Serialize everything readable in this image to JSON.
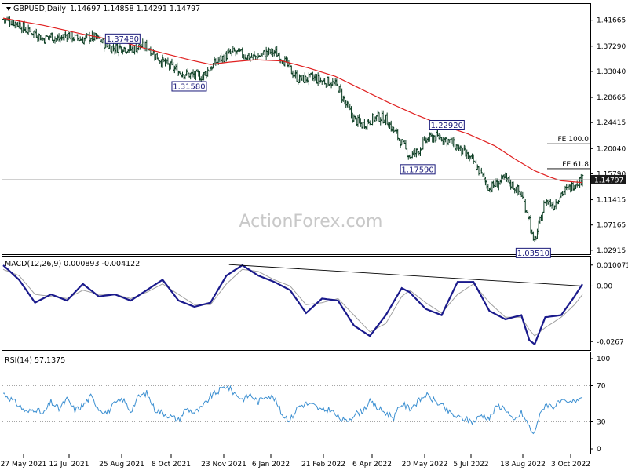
{
  "header": {
    "symbol": "GBPUSD,Daily",
    "ohlc": "1.14697 1.14858 1.14291 1.14797",
    "macd_label": "MACD(12,26,9) 0.000893 -0.004122",
    "rsi_label": "RSI(14) 57.1375"
  },
  "watermark": "ActionForex.com",
  "colors": {
    "candle": "#0b3d22",
    "ma": "#e02020",
    "macd_line": "#1a1a8c",
    "macd_signal": "#a0a0a0",
    "rsi": "#3b8fd1",
    "annotation": "#1a1a7a",
    "current_price_bg": "#1a1a1a",
    "grid_dots": "#888888"
  },
  "chart_data": [
    {
      "type": "candlestick",
      "name": "price",
      "ylim": [
        1.025,
        1.44
      ],
      "y_ticks": [
        "1.41665",
        "1.37290",
        "1.33040",
        "1.28665",
        "1.24415",
        "1.20040",
        "1.15790",
        "1.11415",
        "1.07165",
        "1.02915"
      ],
      "current_price": "1.14797",
      "x_ticks": [
        "27 May 2021",
        "12 Jul 2021",
        "25 Aug 2021",
        "8 Oct 2021",
        "23 Nov 2021",
        "6 Jan 2022",
        "21 Feb 2022",
        "6 Apr 2022",
        "20 May 2022",
        "5 Jul 2022",
        "18 Aug 2022",
        "3 Oct 2022"
      ],
      "close_path": [
        [
          0,
          1.418
        ],
        [
          6,
          1.415
        ],
        [
          12,
          1.41
        ],
        [
          18,
          1.398
        ],
        [
          24,
          1.396
        ],
        [
          30,
          1.385
        ],
        [
          36,
          1.39
        ],
        [
          42,
          1.384
        ],
        [
          48,
          1.393
        ],
        [
          54,
          1.386
        ],
        [
          60,
          1.384
        ],
        [
          66,
          1.389
        ],
        [
          72,
          1.384
        ],
        [
          78,
          1.373
        ],
        [
          84,
          1.37
        ],
        [
          90,
          1.371
        ],
        [
          96,
          1.367
        ],
        [
          102,
          1.372
        ],
        [
          108,
          1.373
        ],
        [
          114,
          1.359
        ],
        [
          120,
          1.346
        ],
        [
          126,
          1.338
        ],
        [
          132,
          1.33
        ],
        [
          138,
          1.326
        ],
        [
          144,
          1.323
        ],
        [
          150,
          1.322
        ],
        [
          156,
          1.337
        ],
        [
          162,
          1.349
        ],
        [
          168,
          1.357
        ],
        [
          174,
          1.363
        ],
        [
          180,
          1.359
        ],
        [
          186,
          1.354
        ],
        [
          192,
          1.356
        ],
        [
          198,
          1.362
        ],
        [
          204,
          1.363
        ],
        [
          210,
          1.353
        ],
        [
          216,
          1.333
        ],
        [
          222,
          1.317
        ],
        [
          228,
          1.318
        ],
        [
          234,
          1.319
        ],
        [
          240,
          1.314
        ],
        [
          246,
          1.313
        ],
        [
          252,
          1.304
        ],
        [
          258,
          1.274
        ],
        [
          264,
          1.25
        ],
        [
          270,
          1.24
        ],
        [
          276,
          1.248
        ],
        [
          282,
          1.254
        ],
        [
          288,
          1.25
        ],
        [
          294,
          1.23
        ],
        [
          300,
          1.21
        ],
        [
          306,
          1.187
        ],
        [
          312,
          1.196
        ],
        [
          318,
          1.214
        ],
        [
          324,
          1.22
        ],
        [
          330,
          1.219
        ],
        [
          336,
          1.213
        ],
        [
          342,
          1.202
        ],
        [
          348,
          1.19
        ],
        [
          354,
          1.177
        ],
        [
          360,
          1.156
        ],
        [
          366,
          1.133
        ],
        [
          372,
          1.142
        ],
        [
          378,
          1.15
        ],
        [
          384,
          1.137
        ],
        [
          390,
          1.123
        ],
        [
          396,
          1.082
        ],
        [
          399,
          1.04
        ],
        [
          402,
          1.06
        ],
        [
          408,
          1.113
        ],
        [
          414,
          1.105
        ],
        [
          420,
          1.125
        ],
        [
          426,
          1.133
        ],
        [
          432,
          1.145
        ],
        [
          436,
          1.148
        ]
      ],
      "moving_average": [
        [
          0,
          1.42
        ],
        [
          30,
          1.408
        ],
        [
          60,
          1.393
        ],
        [
          90,
          1.38
        ],
        [
          110,
          1.367
        ],
        [
          140,
          1.35
        ],
        [
          156,
          1.342
        ],
        [
          170,
          1.346
        ],
        [
          190,
          1.35
        ],
        [
          210,
          1.348
        ],
        [
          230,
          1.336
        ],
        [
          250,
          1.322
        ],
        [
          270,
          1.3
        ],
        [
          290,
          1.278
        ],
        [
          310,
          1.258
        ],
        [
          330,
          1.24
        ],
        [
          350,
          1.225
        ],
        [
          370,
          1.205
        ],
        [
          385,
          1.183
        ],
        [
          400,
          1.163
        ],
        [
          412,
          1.152
        ],
        [
          420,
          1.146
        ],
        [
          436,
          1.143
        ]
      ],
      "annotations": [
        {
          "label": "1.37480",
          "x": 90,
          "y": 1.3748,
          "pos": "above"
        },
        {
          "label": "1.31580",
          "x": 140,
          "y": 1.3158,
          "pos": "below"
        },
        {
          "label": "1.22920",
          "x": 334,
          "y": 1.2292,
          "pos": "above"
        },
        {
          "label": "1.17590",
          "x": 312,
          "y": 1.1759,
          "pos": "below"
        },
        {
          "label": "1.03510",
          "x": 399,
          "y": 1.0351,
          "pos": "below"
        },
        {
          "label": "FE 100.0",
          "y": 1.2085
        },
        {
          "label": "FE 61.8",
          "y": 1.1665
        }
      ]
    },
    {
      "type": "line",
      "name": "MACD(12,26,9)",
      "ylim": [
        -0.03,
        0.013
      ],
      "y_ticks": [
        "0.010071",
        "0.00",
        "-0.0267"
      ],
      "series": [
        {
          "role": "macd",
          "points": [
            [
              0,
              0.01
            ],
            [
              12,
              0.003
            ],
            [
              24,
              -0.008
            ],
            [
              36,
              -0.004
            ],
            [
              48,
              -0.007
            ],
            [
              60,
              0.001
            ],
            [
              72,
              -0.005
            ],
            [
              84,
              -0.004
            ],
            [
              96,
              -0.007
            ],
            [
              108,
              -0.002
            ],
            [
              120,
              0.003
            ],
            [
              132,
              -0.007
            ],
            [
              144,
              -0.01
            ],
            [
              156,
              -0.008
            ],
            [
              168,
              0.005
            ],
            [
              180,
              0.01
            ],
            [
              192,
              0.005
            ],
            [
              204,
              0.002
            ],
            [
              216,
              -0.002
            ],
            [
              228,
              -0.013
            ],
            [
              240,
              -0.006
            ],
            [
              252,
              -0.007
            ],
            [
              264,
              -0.019
            ],
            [
              276,
              -0.024
            ],
            [
              288,
              -0.014
            ],
            [
              300,
              -0.001
            ],
            [
              306,
              -0.003
            ],
            [
              318,
              -0.011
            ],
            [
              330,
              -0.014
            ],
            [
              342,
              0.002
            ],
            [
              354,
              0.002
            ],
            [
              366,
              -0.012
            ],
            [
              378,
              -0.016
            ],
            [
              390,
              -0.014
            ],
            [
              396,
              -0.026
            ],
            [
              400,
              -0.028
            ],
            [
              408,
              -0.015
            ],
            [
              420,
              -0.014
            ],
            [
              430,
              -0.005
            ],
            [
              436,
              0.0009
            ]
          ]
        },
        {
          "role": "signal",
          "points": [
            [
              0,
              0.008
            ],
            [
              12,
              0.005
            ],
            [
              24,
              -0.004
            ],
            [
              36,
              -0.005
            ],
            [
              48,
              -0.006
            ],
            [
              60,
              -0.002
            ],
            [
              72,
              -0.004
            ],
            [
              84,
              -0.004
            ],
            [
              96,
              -0.006
            ],
            [
              108,
              -0.003
            ],
            [
              120,
              0.001
            ],
            [
              132,
              -0.004
            ],
            [
              144,
              -0.009
            ],
            [
              156,
              -0.009
            ],
            [
              168,
              0.001
            ],
            [
              180,
              0.008
            ],
            [
              192,
              0.007
            ],
            [
              204,
              0.003
            ],
            [
              216,
              0.0
            ],
            [
              228,
              -0.009
            ],
            [
              240,
              -0.008
            ],
            [
              252,
              -0.006
            ],
            [
              264,
              -0.014
            ],
            [
              276,
              -0.022
            ],
            [
              288,
              -0.018
            ],
            [
              300,
              -0.005
            ],
            [
              306,
              -0.002
            ],
            [
              318,
              -0.008
            ],
            [
              330,
              -0.013
            ],
            [
              342,
              -0.004
            ],
            [
              354,
              0.001
            ],
            [
              366,
              -0.008
            ],
            [
              378,
              -0.015
            ],
            [
              390,
              -0.015
            ],
            [
              396,
              -0.021
            ],
            [
              400,
              -0.024
            ],
            [
              408,
              -0.02
            ],
            [
              420,
              -0.015
            ],
            [
              430,
              -0.009
            ],
            [
              436,
              -0.0041
            ]
          ]
        }
      ],
      "trendline": [
        [
          170,
          0.0103
        ],
        [
          436,
          0.0
        ]
      ]
    },
    {
      "type": "line",
      "name": "RSI(14)",
      "ylim": [
        0,
        100
      ],
      "y_ticks": [
        "100",
        "70",
        "30",
        "0"
      ],
      "levels": [
        70,
        30
      ],
      "points": [
        [
          0,
          62
        ],
        [
          6,
          55
        ],
        [
          12,
          48
        ],
        [
          18,
          40
        ],
        [
          24,
          45
        ],
        [
          30,
          38
        ],
        [
          36,
          52
        ],
        [
          42,
          44
        ],
        [
          48,
          55
        ],
        [
          54,
          43
        ],
        [
          60,
          48
        ],
        [
          66,
          58
        ],
        [
          72,
          45
        ],
        [
          78,
          40
        ],
        [
          84,
          50
        ],
        [
          90,
          55
        ],
        [
          96,
          42
        ],
        [
          102,
          58
        ],
        [
          108,
          62
        ],
        [
          114,
          44
        ],
        [
          120,
          40
        ],
        [
          126,
          36
        ],
        [
          132,
          32
        ],
        [
          138,
          45
        ],
        [
          144,
          40
        ],
        [
          150,
          46
        ],
        [
          156,
          58
        ],
        [
          162,
          64
        ],
        [
          168,
          70
        ],
        [
          174,
          62
        ],
        [
          180,
          55
        ],
        [
          186,
          60
        ],
        [
          192,
          52
        ],
        [
          198,
          60
        ],
        [
          204,
          56
        ],
        [
          210,
          38
        ],
        [
          216,
          32
        ],
        [
          222,
          47
        ],
        [
          228,
          50
        ],
        [
          234,
          48
        ],
        [
          240,
          42
        ],
        [
          246,
          44
        ],
        [
          252,
          35
        ],
        [
          258,
          30
        ],
        [
          264,
          38
        ],
        [
          270,
          42
        ],
        [
          276,
          52
        ],
        [
          282,
          45
        ],
        [
          288,
          40
        ],
        [
          294,
          35
        ],
        [
          300,
          50
        ],
        [
          306,
          45
        ],
        [
          312,
          52
        ],
        [
          318,
          60
        ],
        [
          324,
          54
        ],
        [
          330,
          48
        ],
        [
          336,
          40
        ],
        [
          342,
          35
        ],
        [
          348,
          33
        ],
        [
          354,
          30
        ],
        [
          360,
          38
        ],
        [
          366,
          34
        ],
        [
          372,
          48
        ],
        [
          378,
          45
        ],
        [
          384,
          30
        ],
        [
          390,
          40
        ],
        [
          396,
          25
        ],
        [
          399,
          15
        ],
        [
          402,
          30
        ],
        [
          408,
          50
        ],
        [
          414,
          47
        ],
        [
          420,
          52
        ],
        [
          426,
          50
        ],
        [
          432,
          55
        ],
        [
          436,
          57.1375
        ]
      ]
    }
  ]
}
